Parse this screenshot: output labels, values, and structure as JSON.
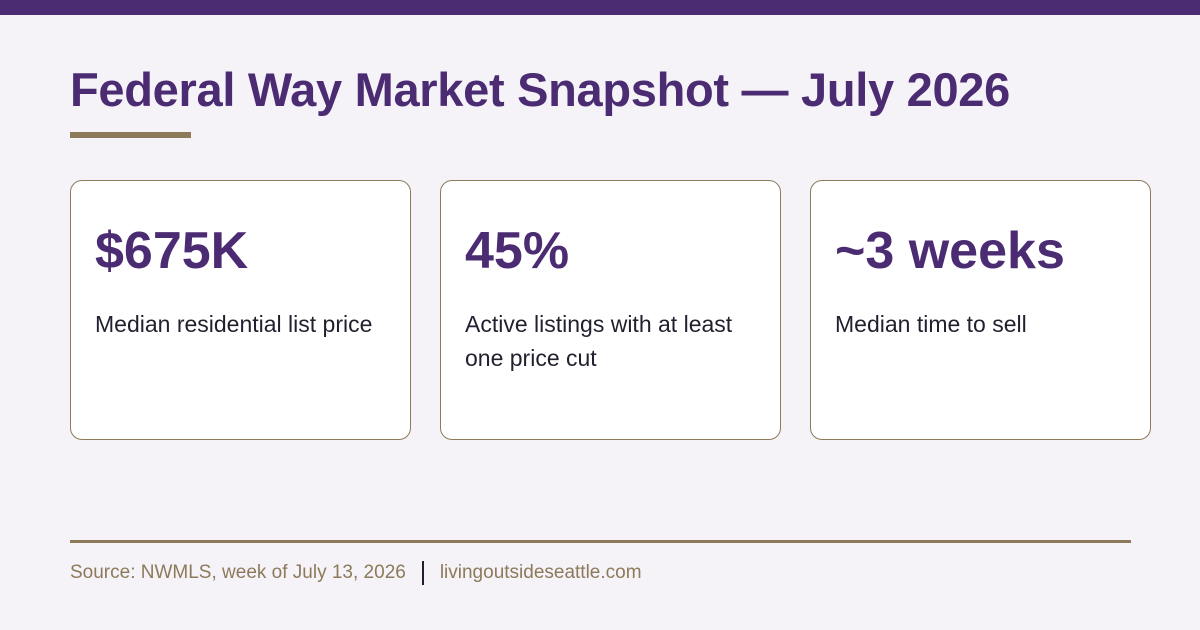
{
  "colors": {
    "accent": "#4b2c73",
    "rule": "#8c7a5b",
    "background": "#f5f3f8",
    "card_bg": "#ffffff",
    "text": "#231f2e"
  },
  "title": "Federal Way Market Snapshot — July 2026",
  "stats": [
    {
      "value": "$675K",
      "label": "Median residential list price"
    },
    {
      "value": "45%",
      "label": "Active listings with at least one price cut"
    },
    {
      "value": "~3 weeks",
      "label": "Median time to sell"
    }
  ],
  "footer": {
    "source": "Source: NWMLS, week of July 13, 2026",
    "site": "livingoutsideseattle.com"
  }
}
